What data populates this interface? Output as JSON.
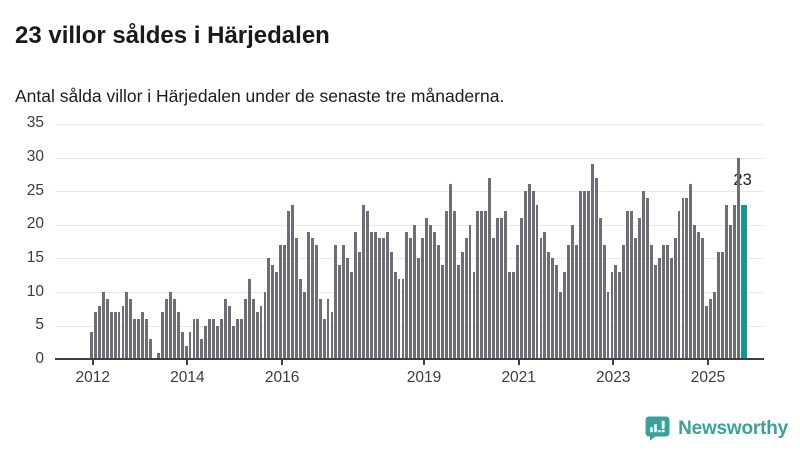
{
  "header": {
    "title": "23 villor såldes i Härjedalen",
    "subtitle": "Antal sålda villor i Härjedalen under de senaste tre månaderna."
  },
  "chart_data": {
    "type": "bar",
    "title": "23 villor såldes i Härjedalen",
    "subtitle": "Antal sålda villor i Härjedalen under de senaste tre månaderna.",
    "x_start": {
      "year": 2012,
      "month": 1
    },
    "x_end": {
      "year": 2025,
      "month": 10
    },
    "values": [
      4,
      7,
      8,
      10,
      9,
      7,
      7,
      7,
      8,
      10,
      9,
      6,
      6,
      7,
      6,
      3,
      0,
      1,
      7,
      9,
      10,
      9,
      7,
      4,
      2,
      4,
      6,
      6,
      3,
      5,
      6,
      6,
      5,
      6,
      9,
      8,
      5,
      6,
      6,
      9,
      12,
      9,
      7,
      8,
      10,
      15,
      14,
      13,
      17,
      17,
      22,
      23,
      18,
      12,
      10,
      19,
      18,
      17,
      9,
      6,
      9,
      7,
      17,
      14,
      17,
      15,
      13,
      19,
      16,
      23,
      22,
      19,
      19,
      18,
      18,
      19,
      16,
      13,
      12,
      12,
      19,
      18,
      20,
      15,
      18,
      21,
      20,
      19,
      17,
      14,
      22,
      26,
      22,
      14,
      16,
      18,
      20,
      13,
      22,
      22,
      22,
      27,
      18,
      21,
      21,
      22,
      13,
      13,
      17,
      21,
      25,
      26,
      25,
      23,
      18,
      19,
      16,
      15,
      14,
      10,
      13,
      17,
      20,
      17,
      25,
      25,
      25,
      29,
      27,
      21,
      17,
      10,
      13,
      14,
      13,
      17,
      22,
      22,
      18,
      21,
      25,
      24,
      17,
      14,
      15,
      17,
      17,
      15,
      18,
      22,
      24,
      24,
      26,
      20,
      19,
      18,
      8,
      9,
      10,
      16,
      16,
      23,
      20,
      23,
      30,
      23
    ],
    "highlight": {
      "position": "last",
      "value": 23,
      "label": "23",
      "color": "#16988f"
    },
    "bar_color": "#6e6d75",
    "y_axis": {
      "ticks": [
        0,
        5,
        10,
        15,
        20,
        25,
        30,
        35
      ],
      "min": 0,
      "max": 35
    },
    "x_axis": {
      "tick_years": [
        2012,
        2014,
        2016,
        2019,
        2021,
        2023,
        2025
      ]
    },
    "grid": true,
    "legend": false
  },
  "branding": {
    "logo_text": "Newsworthy",
    "logo_color": "#3ba29b"
  }
}
